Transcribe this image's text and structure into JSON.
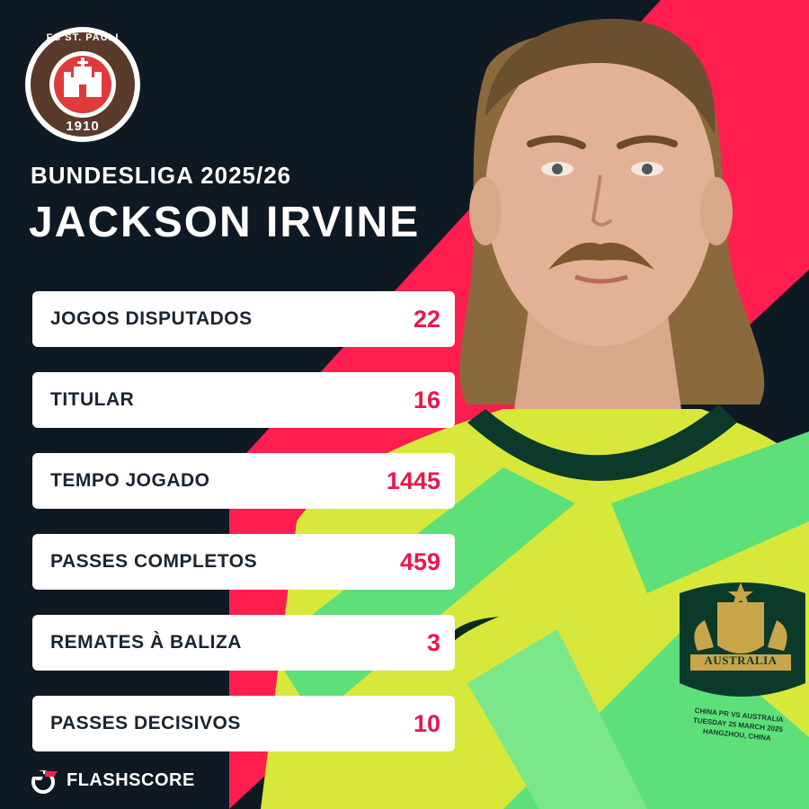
{
  "club": {
    "name": "FC ST. PAULI",
    "year": "1910"
  },
  "season": "BUNDESLIGA 2025/26",
  "player_name": "JACKSON IRVINE",
  "stats": [
    {
      "label": "JOGOS DISPUTADOS",
      "value": "22"
    },
    {
      "label": "TITULAR",
      "value": "16"
    },
    {
      "label": "TEMPO JOGADO",
      "value": "1445"
    },
    {
      "label": "PASSES COMPLETOS",
      "value": "459"
    },
    {
      "label": "REMATES À BALIZA",
      "value": "3"
    },
    {
      "label": "PASSES DECISIVOS",
      "value": "10"
    }
  ],
  "shirt": {
    "crest_text": "AUSTRALIA",
    "match_line1": "CHINA PR VS AUSTRALIA",
    "match_line2": "TUESDAY 25 MARCH 2025",
    "match_line3": "HANGZHOU, CHINA"
  },
  "brand": "FLASHSCORE",
  "colors": {
    "background": "#0f1924",
    "accent": "#ff1e4e",
    "value": "#e8174a",
    "card": "#ffffff",
    "label": "#1a2530",
    "shirt_green": "#5de07a",
    "shirt_yellow": "#e8e83a",
    "club_red": "#e03a3a",
    "club_brown": "#5a3a2a"
  }
}
